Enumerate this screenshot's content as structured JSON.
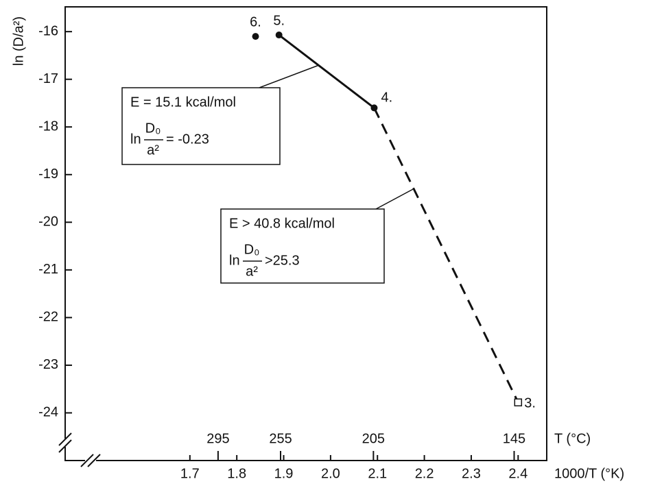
{
  "chart_data": {
    "type": "line",
    "y_label": "ln (D/a²)",
    "x_label": "1000/T (°K)",
    "t_label": "T (°C)",
    "xlim": [
      1.434,
      2.461
    ],
    "ylim": [
      -25,
      -15.48
    ],
    "xticks": [
      1.7,
      1.8,
      1.9,
      {
        "value": 2,
        "label": "2.0"
      },
      2.1,
      2.2,
      2.3,
      2.4
    ],
    "yticks": [
      -16,
      -17,
      -18,
      -19,
      -20,
      -21,
      -22,
      -23,
      -24
    ],
    "tticks": [
      295,
      255,
      205,
      145
    ],
    "points": {
      "x": [
        1.84,
        1.89,
        2.093,
        2.4
      ],
      "values": [
        -16.1,
        -16.07,
        -17.6,
        -23.78
      ],
      "labels": [
        "6.",
        "5.",
        "4.",
        "3."
      ],
      "markers": [
        "dot",
        "dot",
        "dot",
        "square"
      ]
    },
    "series": [
      {
        "x": [
          1.89,
          2.093
        ],
        "values": [
          -16.07,
          -17.6
        ],
        "dashed": false
      },
      {
        "x": [
          2.093,
          2.4
        ],
        "values": [
          -17.6,
          -23.78
        ],
        "dashed": true
      }
    ],
    "annotations": [
      {
        "energy": "E = 15.1 kcal/mol",
        "prefix": "ln",
        "numerator": "D₀",
        "denominator": "a²",
        "suffix": "= -0.23"
      },
      {
        "energy": "E > 40.8 kcal/mol",
        "prefix": "ln",
        "numerator": "D₀",
        "denominator": "a²",
        "suffix": ">25.3"
      }
    ]
  }
}
